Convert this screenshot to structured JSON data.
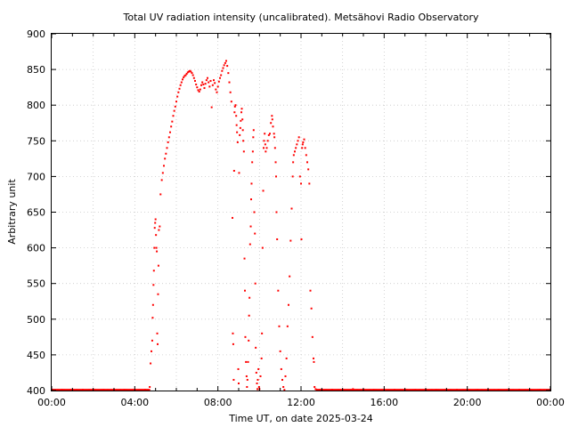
{
  "chart_data": {
    "type": "scatter",
    "title": "Total UV radiation intensity (uncalibrated). Metsähovi Radio Observatory",
    "xlabel": "Time UT, on date 2025-03-24",
    "ylabel": "Arbitrary unit",
    "xlim": [
      0,
      24
    ],
    "ylim": [
      400,
      900
    ],
    "grid": true,
    "point_color": "#ff0000",
    "x_ticks": [
      {
        "value": 0,
        "label": "00:00"
      },
      {
        "value": 4,
        "label": "04:00"
      },
      {
        "value": 8,
        "label": "08:00"
      },
      {
        "value": 12,
        "label": "12:00"
      },
      {
        "value": 16,
        "label": "16:00"
      },
      {
        "value": 20,
        "label": "20:00"
      },
      {
        "value": 24,
        "label": "00:00"
      }
    ],
    "y_ticks": [
      {
        "value": 400,
        "label": "400"
      },
      {
        "value": 450,
        "label": "450"
      },
      {
        "value": 500,
        "label": "500"
      },
      {
        "value": 550,
        "label": "550"
      },
      {
        "value": 600,
        "label": "600"
      },
      {
        "value": 650,
        "label": "650"
      },
      {
        "value": 700,
        "label": "700"
      },
      {
        "value": 750,
        "label": "750"
      },
      {
        "value": 800,
        "label": "800"
      },
      {
        "value": 850,
        "label": "850"
      },
      {
        "value": 900,
        "label": "900"
      }
    ],
    "series": [
      {
        "points": [
          [
            0.0,
            401
          ],
          [
            0.5,
            401
          ],
          [
            1.0,
            401
          ],
          [
            1.5,
            401
          ],
          [
            2.0,
            401
          ],
          [
            2.5,
            401
          ],
          [
            3.0,
            401
          ],
          [
            3.5,
            401
          ],
          [
            4.0,
            401
          ],
          [
            4.5,
            401
          ],
          [
            4.72,
            405
          ],
          [
            4.76,
            438
          ],
          [
            4.8,
            455
          ],
          [
            4.84,
            470
          ],
          [
            4.86,
            502
          ],
          [
            4.88,
            520
          ],
          [
            4.9,
            548
          ],
          [
            4.92,
            568
          ],
          [
            4.94,
            600
          ],
          [
            4.96,
            628
          ],
          [
            4.98,
            635
          ],
          [
            5.0,
            640
          ],
          [
            5.02,
            618
          ],
          [
            5.04,
            600
          ],
          [
            5.06,
            595
          ],
          [
            5.08,
            480
          ],
          [
            5.1,
            465
          ],
          [
            5.12,
            535
          ],
          [
            5.14,
            575
          ],
          [
            5.16,
            625
          ],
          [
            5.2,
            630
          ],
          [
            5.24,
            675
          ],
          [
            5.3,
            695
          ],
          [
            5.35,
            705
          ],
          [
            5.4,
            715
          ],
          [
            5.45,
            725
          ],
          [
            5.5,
            732
          ],
          [
            5.55,
            740
          ],
          [
            5.6,
            748
          ],
          [
            5.65,
            755
          ],
          [
            5.7,
            762
          ],
          [
            5.75,
            770
          ],
          [
            5.8,
            777
          ],
          [
            5.85,
            785
          ],
          [
            5.9,
            792
          ],
          [
            5.95,
            798
          ],
          [
            6.0,
            805
          ],
          [
            6.05,
            812
          ],
          [
            6.1,
            818
          ],
          [
            6.15,
            823
          ],
          [
            6.2,
            828
          ],
          [
            6.25,
            832
          ],
          [
            6.3,
            836
          ],
          [
            6.35,
            839
          ],
          [
            6.4,
            841
          ],
          [
            6.45,
            842
          ],
          [
            6.5,
            844
          ],
          [
            6.55,
            846
          ],
          [
            6.6,
            847
          ],
          [
            6.65,
            848
          ],
          [
            6.7,
            847
          ],
          [
            6.75,
            845
          ],
          [
            6.8,
            842
          ],
          [
            6.85,
            838
          ],
          [
            6.9,
            834
          ],
          [
            6.95,
            829
          ],
          [
            7.0,
            825
          ],
          [
            7.05,
            821
          ],
          [
            7.1,
            819
          ],
          [
            7.15,
            822
          ],
          [
            7.2,
            828
          ],
          [
            7.25,
            832
          ],
          [
            7.3,
            829
          ],
          [
            7.35,
            824
          ],
          [
            7.4,
            830
          ],
          [
            7.45,
            835
          ],
          [
            7.5,
            838
          ],
          [
            7.55,
            832
          ],
          [
            7.6,
            826
          ],
          [
            7.65,
            834
          ],
          [
            7.7,
            797
          ],
          [
            7.75,
            828
          ],
          [
            7.8,
            835
          ],
          [
            7.85,
            831
          ],
          [
            7.9,
            822
          ],
          [
            7.95,
            818
          ],
          [
            8.0,
            826
          ],
          [
            8.05,
            833
          ],
          [
            8.1,
            838
          ],
          [
            8.15,
            842
          ],
          [
            8.2,
            848
          ],
          [
            8.25,
            852
          ],
          [
            8.3,
            856
          ],
          [
            8.35,
            859
          ],
          [
            8.4,
            862
          ],
          [
            8.45,
            855
          ],
          [
            8.5,
            845
          ],
          [
            8.55,
            832
          ],
          [
            8.6,
            818
          ],
          [
            8.65,
            805
          ],
          [
            8.7,
            642
          ],
          [
            8.72,
            480
          ],
          [
            8.74,
            465
          ],
          [
            8.76,
            415
          ],
          [
            8.78,
            708
          ],
          [
            8.8,
            790
          ],
          [
            8.82,
            798
          ],
          [
            8.85,
            800
          ],
          [
            8.88,
            785
          ],
          [
            8.9,
            772
          ],
          [
            8.92,
            762
          ],
          [
            8.95,
            748
          ],
          [
            8.98,
            430
          ],
          [
            9.0,
            410
          ],
          [
            9.02,
            705
          ],
          [
            9.05,
            758
          ],
          [
            9.08,
            768
          ],
          [
            9.1,
            778
          ],
          [
            9.13,
            790
          ],
          [
            9.15,
            795
          ],
          [
            9.18,
            780
          ],
          [
            9.2,
            765
          ],
          [
            9.22,
            750
          ],
          [
            9.25,
            735
          ],
          [
            9.28,
            585
          ],
          [
            9.3,
            540
          ],
          [
            9.32,
            475
          ],
          [
            9.35,
            440
          ],
          [
            9.38,
            420
          ],
          [
            9.4,
            405
          ],
          [
            9.42,
            415
          ],
          [
            9.45,
            440
          ],
          [
            9.48,
            470
          ],
          [
            9.5,
            505
          ],
          [
            9.52,
            530
          ],
          [
            9.55,
            605
          ],
          [
            9.58,
            630
          ],
          [
            9.6,
            668
          ],
          [
            9.62,
            690
          ],
          [
            9.65,
            720
          ],
          [
            9.68,
            735
          ],
          [
            9.7,
            755
          ],
          [
            9.72,
            765
          ],
          [
            9.75,
            650
          ],
          [
            9.78,
            620
          ],
          [
            9.8,
            550
          ],
          [
            9.82,
            460
          ],
          [
            9.85,
            425
          ],
          [
            9.88,
            410
          ],
          [
            9.9,
            402
          ],
          [
            9.92,
            415
          ],
          [
            9.95,
            430
          ],
          [
            9.98,
            405
          ],
          [
            10.0,
            402
          ],
          [
            10.05,
            420
          ],
          [
            10.1,
            445
          ],
          [
            10.12,
            480
          ],
          [
            10.15,
            600
          ],
          [
            10.18,
            680
          ],
          [
            10.2,
            740
          ],
          [
            10.22,
            750
          ],
          [
            10.25,
            760
          ],
          [
            10.28,
            745
          ],
          [
            10.3,
            735
          ],
          [
            10.35,
            740
          ],
          [
            10.4,
            750
          ],
          [
            10.45,
            758
          ],
          [
            10.5,
            760
          ],
          [
            10.55,
            775
          ],
          [
            10.6,
            785
          ],
          [
            10.62,
            780
          ],
          [
            10.65,
            770
          ],
          [
            10.7,
            760
          ],
          [
            10.72,
            755
          ],
          [
            10.75,
            740
          ],
          [
            10.78,
            720
          ],
          [
            10.8,
            700
          ],
          [
            10.82,
            650
          ],
          [
            10.85,
            612
          ],
          [
            10.9,
            540
          ],
          [
            10.95,
            490
          ],
          [
            11.0,
            455
          ],
          [
            11.05,
            430
          ],
          [
            11.1,
            415
          ],
          [
            11.15,
            405
          ],
          [
            11.2,
            401
          ],
          [
            11.25,
            420
          ],
          [
            11.3,
            445
          ],
          [
            11.35,
            490
          ],
          [
            11.4,
            520
          ],
          [
            11.45,
            560
          ],
          [
            11.5,
            610
          ],
          [
            11.55,
            655
          ],
          [
            11.6,
            700
          ],
          [
            11.62,
            720
          ],
          [
            11.65,
            730
          ],
          [
            11.7,
            735
          ],
          [
            11.75,
            740
          ],
          [
            11.8,
            745
          ],
          [
            11.85,
            750
          ],
          [
            11.9,
            755
          ],
          [
            11.95,
            700
          ],
          [
            12.0,
            690
          ],
          [
            12.02,
            612
          ],
          [
            12.05,
            740
          ],
          [
            12.08,
            745
          ],
          [
            12.1,
            748
          ],
          [
            12.15,
            752
          ],
          [
            12.2,
            740
          ],
          [
            12.25,
            730
          ],
          [
            12.3,
            720
          ],
          [
            12.35,
            710
          ],
          [
            12.4,
            690
          ],
          [
            12.45,
            540
          ],
          [
            12.5,
            515
          ],
          [
            12.55,
            475
          ],
          [
            12.6,
            445
          ],
          [
            12.62,
            440
          ],
          [
            12.65,
            405
          ],
          [
            12.7,
            402
          ],
          [
            12.75,
            401
          ],
          [
            13.0,
            401
          ],
          [
            13.5,
            401
          ],
          [
            14.0,
            401
          ],
          [
            14.5,
            402
          ],
          [
            15.0,
            401
          ],
          [
            15.5,
            401
          ],
          [
            16.0,
            401
          ],
          [
            16.5,
            401
          ],
          [
            17.0,
            401
          ],
          [
            17.5,
            401
          ],
          [
            18.0,
            401
          ],
          [
            18.5,
            401
          ],
          [
            19.0,
            401
          ],
          [
            19.5,
            401
          ],
          [
            20.0,
            401
          ],
          [
            20.5,
            401
          ],
          [
            21.0,
            401
          ],
          [
            21.5,
            401
          ],
          [
            22.0,
            401
          ],
          [
            22.5,
            401
          ],
          [
            23.0,
            401
          ],
          [
            23.5,
            401
          ],
          [
            24.0,
            401
          ]
        ]
      }
    ]
  }
}
